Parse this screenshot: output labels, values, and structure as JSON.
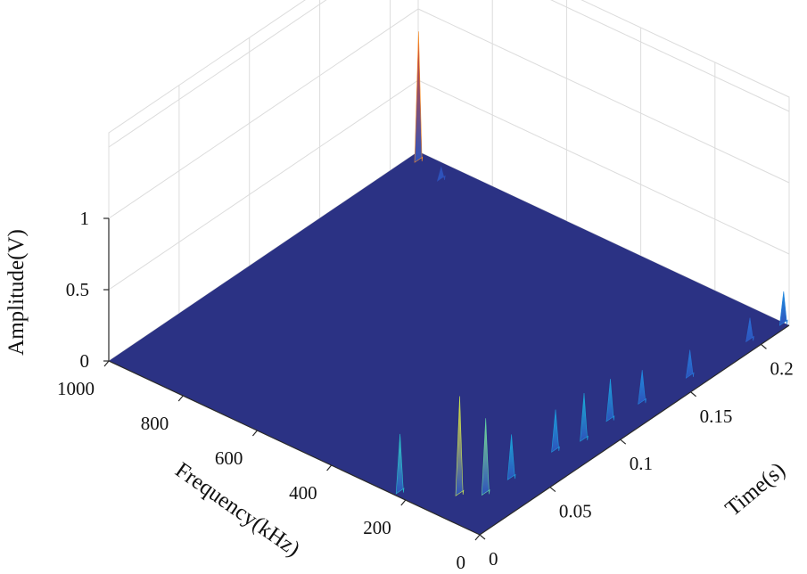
{
  "chart_data": {
    "type": "surface3d",
    "title": "",
    "xlabel": "Time(s)",
    "ylabel": "Frequency(kHz)",
    "zlabel": "Amplitude(V)",
    "xlim": [
      0,
      0.22
    ],
    "ylim": [
      0,
      1000
    ],
    "zlim": [
      0,
      1
    ],
    "x_ticks": [
      0,
      0.05,
      0.1,
      0.15,
      0.2
    ],
    "x_tick_labels": [
      "0",
      "0.05",
      "0.1",
      "0.15",
      "0.2"
    ],
    "y_ticks": [
      0,
      200,
      400,
      600,
      800,
      1000
    ],
    "y_tick_labels": [
      "0",
      "200",
      "400",
      "600",
      "800",
      "1000"
    ],
    "z_ticks": [
      0,
      0.5,
      1
    ],
    "z_tick_labels": [
      "0",
      "0.5",
      "1"
    ],
    "colormap": "parula",
    "colormap_stops": [
      "#2b3284",
      "#2f5fd0",
      "#1e8fe0",
      "#19b4d4",
      "#4fd0b0",
      "#9ee07c",
      "#e8e030",
      "#f8a32a",
      "#f05020",
      "#c81e1e"
    ],
    "base_color": "#2b3284",
    "grid": true,
    "peaks": [
      {
        "time": 0.02,
        "freq": 130,
        "amplitude": 0.68
      },
      {
        "time": 0.028,
        "freq": 90,
        "amplitude": 0.52
      },
      {
        "time": 0.004,
        "freq": 230,
        "amplitude": 0.4
      },
      {
        "time": 0.045,
        "freq": 85,
        "amplitude": 0.3
      },
      {
        "time": 0.075,
        "freq": 80,
        "amplitude": 0.28
      },
      {
        "time": 0.09,
        "freq": 60,
        "amplitude": 0.32
      },
      {
        "time": 0.11,
        "freq": 65,
        "amplitude": 0.28
      },
      {
        "time": 0.13,
        "freq": 55,
        "amplitude": 0.22
      },
      {
        "time": 0.16,
        "freq": 40,
        "amplitude": 0.18
      },
      {
        "time": 0.2,
        "freq": 30,
        "amplitude": 0.15
      },
      {
        "time": 0.215,
        "freq": 980,
        "amplitude": 0.9
      },
      {
        "time": 0.21,
        "freq": 900,
        "amplitude": 0.08
      },
      {
        "time": 0.22,
        "freq": 15,
        "amplitude": 0.22
      }
    ]
  }
}
